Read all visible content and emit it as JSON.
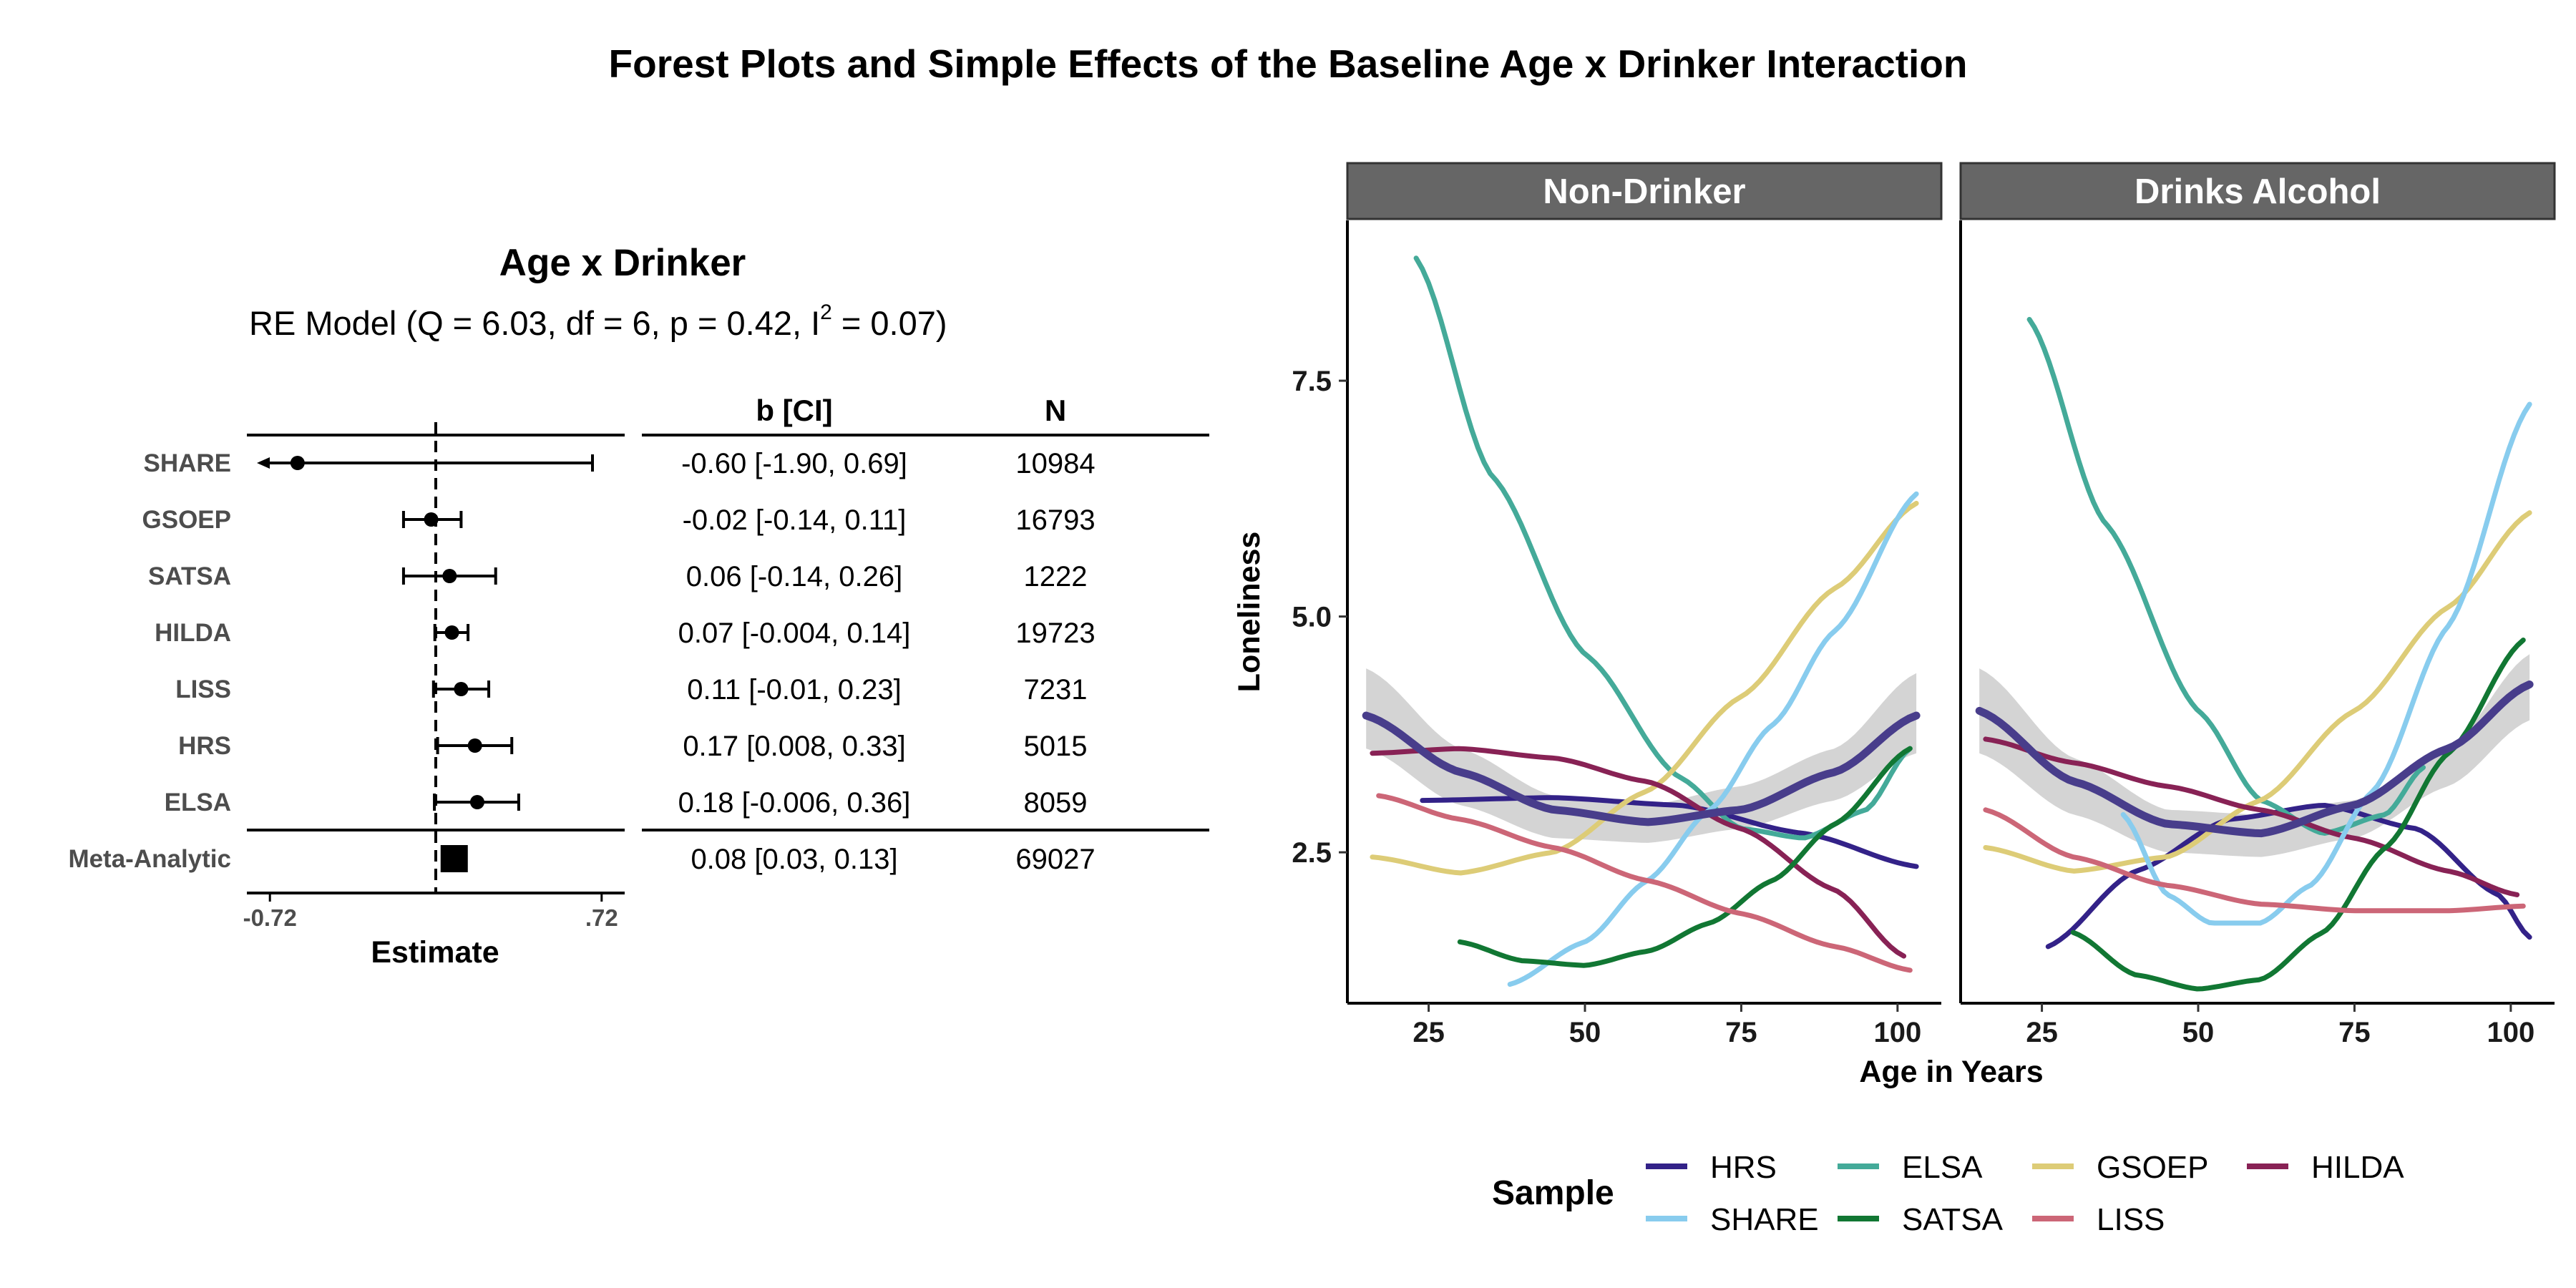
{
  "title": "Forest Plots and Simple Effects of the Baseline Age x Drinker Interaction",
  "forest": {
    "title": "Age x Drinker",
    "model_prefix": "RE Model (Q = 6.03, df = 6, p = 0.42, I",
    "model_sup": "2",
    "model_suffix": " = 0.07)",
    "col_b": "b [CI]",
    "col_n": "N",
    "xlabel": "Estimate",
    "ticks": [
      {
        "value": -0.72,
        "label": "-0.72"
      },
      {
        "value": 0.72,
        "label": ".72"
      }
    ],
    "xlim": [
      -0.82,
      0.82
    ],
    "rows": [
      {
        "study": "SHARE",
        "est": -0.6,
        "lo": -1.9,
        "hi": 0.69,
        "ci": "-0.60 [-1.90, 0.69]",
        "n": "10984"
      },
      {
        "study": "GSOEP",
        "est": -0.02,
        "lo": -0.14,
        "hi": 0.11,
        "ci": "-0.02 [-0.14, 0.11]",
        "n": "16793"
      },
      {
        "study": "SATSA",
        "est": 0.06,
        "lo": -0.14,
        "hi": 0.26,
        "ci": "0.06 [-0.14, 0.26]",
        "n": "1222"
      },
      {
        "study": "HILDA",
        "est": 0.07,
        "lo": -0.004,
        "hi": 0.14,
        "ci": "0.07 [-0.004, 0.14]",
        "n": "19723"
      },
      {
        "study": "LISS",
        "est": 0.11,
        "lo": -0.01,
        "hi": 0.23,
        "ci": "0.11 [-0.01, 0.23]",
        "n": "7231"
      },
      {
        "study": "HRS",
        "est": 0.17,
        "lo": 0.008,
        "hi": 0.33,
        "ci": "0.17 [0.008, 0.33]",
        "n": "5015"
      },
      {
        "study": "ELSA",
        "est": 0.18,
        "lo": -0.006,
        "hi": 0.36,
        "ci": "0.18 [-0.006, 0.36]",
        "n": "8059"
      }
    ],
    "meta": {
      "study": "Meta-Analytic",
      "est": 0.08,
      "lo": 0.03,
      "hi": 0.13,
      "ci": "0.08 [0.03, 0.13]",
      "n": "69027"
    }
  },
  "chart_data": {
    "type": "line",
    "xlabel": "Age in Years",
    "ylabel": "Loneliness",
    "xlim": [
      12,
      107
    ],
    "ylim": [
      0.9,
      9.2
    ],
    "xticks": [
      25,
      50,
      75,
      100
    ],
    "yticks": [
      2.5,
      5.0,
      7.5
    ],
    "ytick_labels": [
      "2.5",
      "5.0",
      "7.5"
    ],
    "legend_title": "Sample",
    "legend_position": "bottom",
    "panels": [
      {
        "label": "Non-Drinker",
        "series": [
          {
            "name": "HRS",
            "color": "#332288",
            "points": [
              [
                24,
                3.05
              ],
              [
                45,
                3.08
              ],
              [
                65,
                3.0
              ],
              [
                85,
                2.7
              ],
              [
                103,
                2.35
              ]
            ]
          },
          {
            "name": "ELSA",
            "color": "#44AA99",
            "points": [
              [
                23,
                8.8
              ],
              [
                35,
                6.5
              ],
              [
                50,
                4.6
              ],
              [
                65,
                3.3
              ],
              [
                75,
                2.75
              ],
              [
                85,
                2.65
              ],
              [
                95,
                2.95
              ],
              [
                102,
                3.6
              ]
            ]
          },
          {
            "name": "GSOEP",
            "color": "#DDCC77",
            "points": [
              [
                16,
                2.45
              ],
              [
                30,
                2.28
              ],
              [
                45,
                2.5
              ],
              [
                60,
                3.15
              ],
              [
                75,
                4.15
              ],
              [
                90,
                5.3
              ],
              [
                103,
                6.2
              ]
            ]
          },
          {
            "name": "HILDA",
            "color": "#882255",
            "points": [
              [
                16,
                3.55
              ],
              [
                30,
                3.6
              ],
              [
                45,
                3.5
              ],
              [
                60,
                3.25
              ],
              [
                75,
                2.75
              ],
              [
                90,
                2.1
              ],
              [
                101,
                1.4
              ]
            ]
          },
          {
            "name": "SHARE",
            "color": "#88CCEE",
            "points": [
              [
                38,
                1.1
              ],
              [
                50,
                1.55
              ],
              [
                60,
                2.2
              ],
              [
                70,
                2.95
              ],
              [
                80,
                3.85
              ],
              [
                90,
                4.85
              ],
              [
                103,
                6.3
              ]
            ]
          },
          {
            "name": "SATSA",
            "color": "#117733",
            "points": [
              [
                30,
                1.55
              ],
              [
                40,
                1.35
              ],
              [
                50,
                1.3
              ],
              [
                60,
                1.45
              ],
              [
                70,
                1.75
              ],
              [
                80,
                2.2
              ],
              [
                90,
                2.8
              ],
              [
                102,
                3.6
              ]
            ]
          },
          {
            "name": "LISS",
            "color": "#CC6677",
            "points": [
              [
                17,
                3.1
              ],
              [
                30,
                2.85
              ],
              [
                45,
                2.55
              ],
              [
                60,
                2.2
              ],
              [
                75,
                1.85
              ],
              [
                90,
                1.5
              ],
              [
                102,
                1.25
              ]
            ]
          }
        ],
        "ribbon": {
          "x": [
            15,
            30,
            45,
            60,
            75,
            90,
            103
          ],
          "lo": [
            3.6,
            3.0,
            2.65,
            2.6,
            2.75,
            3.05,
            3.55
          ],
          "hi": [
            4.45,
            3.6,
            3.1,
            3.0,
            3.2,
            3.6,
            4.4
          ]
        },
        "pooled": {
          "color": "#483D8B",
          "points": [
            [
              15,
              3.95
            ],
            [
              30,
              3.35
            ],
            [
              45,
              2.95
            ],
            [
              60,
              2.82
            ],
            [
              75,
              2.95
            ],
            [
              90,
              3.35
            ],
            [
              103,
              3.95
            ]
          ]
        }
      },
      {
        "label": "Drinks Alcohol",
        "series": [
          {
            "name": "HRS",
            "color": "#332288",
            "points": [
              [
                26,
                1.5
              ],
              [
                40,
                2.3
              ],
              [
                55,
                2.85
              ],
              [
                70,
                3.0
              ],
              [
                85,
                2.75
              ],
              [
                98,
                2.05
              ],
              [
                103,
                1.6
              ]
            ]
          },
          {
            "name": "ELSA",
            "color": "#44AA99",
            "points": [
              [
                23,
                8.15
              ],
              [
                35,
                6.0
              ],
              [
                50,
                4.0
              ],
              [
                60,
                3.05
              ],
              [
                70,
                2.7
              ],
              [
                80,
                2.9
              ],
              [
                86,
                3.4
              ]
            ]
          },
          {
            "name": "GSOEP",
            "color": "#DDCC77",
            "points": [
              [
                16,
                2.55
              ],
              [
                30,
                2.3
              ],
              [
                45,
                2.45
              ],
              [
                60,
                3.05
              ],
              [
                75,
                4.0
              ],
              [
                90,
                5.1
              ],
              [
                103,
                6.1
              ]
            ]
          },
          {
            "name": "HILDA",
            "color": "#882255",
            "points": [
              [
                16,
                3.7
              ],
              [
                30,
                3.45
              ],
              [
                45,
                3.2
              ],
              [
                60,
                2.95
              ],
              [
                75,
                2.65
              ],
              [
                90,
                2.3
              ],
              [
                101,
                2.05
              ]
            ]
          },
          {
            "name": "SHARE",
            "color": "#88CCEE",
            "points": [
              [
                38,
                2.9
              ],
              [
                45,
                2.05
              ],
              [
                52,
                1.75
              ],
              [
                60,
                1.75
              ],
              [
                68,
                2.15
              ],
              [
                78,
                3.15
              ],
              [
                90,
                4.9
              ],
              [
                103,
                7.25
              ]
            ]
          },
          {
            "name": "SATSA",
            "color": "#117733",
            "points": [
              [
                30,
                1.65
              ],
              [
                40,
                1.2
              ],
              [
                50,
                1.05
              ],
              [
                60,
                1.15
              ],
              [
                70,
                1.65
              ],
              [
                80,
                2.55
              ],
              [
                90,
                3.55
              ],
              [
                102,
                4.75
              ]
            ]
          },
          {
            "name": "LISS",
            "color": "#CC6677",
            "points": [
              [
                16,
                2.95
              ],
              [
                30,
                2.45
              ],
              [
                45,
                2.15
              ],
              [
                60,
                1.95
              ],
              [
                75,
                1.88
              ],
              [
                90,
                1.88
              ],
              [
                102,
                1.93
              ]
            ]
          }
        ],
        "ribbon": {
          "x": [
            15,
            30,
            45,
            60,
            75,
            90,
            103
          ],
          "lo": [
            3.55,
            2.9,
            2.5,
            2.45,
            2.65,
            3.2,
            3.9
          ],
          "hi": [
            4.45,
            3.5,
            2.95,
            2.9,
            3.05,
            3.6,
            4.6
          ]
        },
        "pooled": {
          "color": "#483D8B",
          "points": [
            [
              15,
              4.0
            ],
            [
              30,
              3.25
            ],
            [
              45,
              2.8
            ],
            [
              60,
              2.7
            ],
            [
              75,
              3.0
            ],
            [
              90,
              3.6
            ],
            [
              103,
              4.28
            ]
          ]
        }
      }
    ],
    "legend": [
      {
        "name": "HRS",
        "color": "#332288"
      },
      {
        "name": "SHARE",
        "color": "#88CCEE"
      },
      {
        "name": "ELSA",
        "color": "#44AA99"
      },
      {
        "name": "SATSA",
        "color": "#117733"
      },
      {
        "name": "GSOEP",
        "color": "#DDCC77"
      },
      {
        "name": "LISS",
        "color": "#CC6677"
      },
      {
        "name": "HILDA",
        "color": "#882255"
      }
    ]
  }
}
